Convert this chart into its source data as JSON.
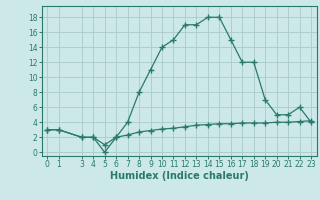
{
  "x": [
    0,
    1,
    3,
    4,
    5,
    6,
    7,
    8,
    9,
    10,
    11,
    12,
    13,
    14,
    15,
    16,
    17,
    18,
    19,
    20,
    21,
    22,
    23
  ],
  "y_main": [
    3,
    3,
    2,
    2,
    0,
    2,
    4,
    8,
    11,
    14,
    15,
    17,
    17,
    18,
    18,
    15,
    12,
    12,
    7,
    5,
    5,
    6,
    4
  ],
  "y_flat": [
    3,
    3,
    2,
    2,
    1,
    2,
    2.3,
    2.7,
    2.9,
    3.1,
    3.2,
    3.4,
    3.6,
    3.7,
    3.8,
    3.8,
    3.9,
    3.9,
    3.9,
    4.0,
    4.0,
    4.1,
    4.2
  ],
  "line_color": "#2a7a6a",
  "bg_color": "#cce8e8",
  "grid_color": "#aacaca",
  "xlabel": "Humidex (Indice chaleur)",
  "ylim": [
    -0.5,
    19.5
  ],
  "xlim": [
    -0.5,
    23.5
  ],
  "yticks": [
    0,
    2,
    4,
    6,
    8,
    10,
    12,
    14,
    16,
    18
  ],
  "xticks": [
    0,
    1,
    3,
    4,
    5,
    6,
    7,
    8,
    9,
    10,
    11,
    12,
    13,
    14,
    15,
    16,
    17,
    18,
    19,
    20,
    21,
    22,
    23
  ],
  "label_fontsize": 7,
  "tick_fontsize": 5.5
}
